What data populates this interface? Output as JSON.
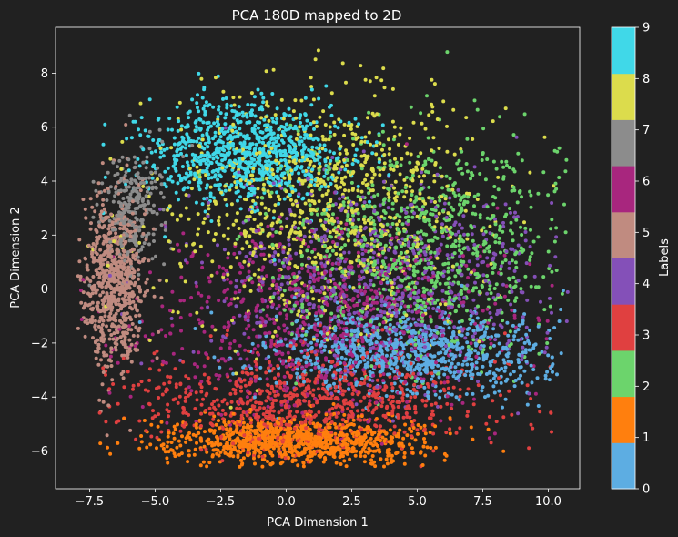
{
  "chart_data": {
    "type": "scatter",
    "title": "PCA 180D mapped to 2D",
    "xlabel": "PCA Dimension 1",
    "ylabel": "PCA Dimension 2",
    "xlim": [
      -8.8,
      11.2
    ],
    "ylim": [
      -7.4,
      9.7
    ],
    "xticks": [
      -7.5,
      -5.0,
      -2.5,
      0.0,
      2.5,
      5.0,
      7.5,
      10.0
    ],
    "xtick_labels": [
      "−7.5",
      "−5.0",
      "−2.5",
      "0.0",
      "2.5",
      "5.0",
      "7.5",
      "10.0"
    ],
    "yticks": [
      -6,
      -4,
      -2,
      0,
      2,
      4,
      6,
      8
    ],
    "ytick_labels": [
      "−6",
      "−4",
      "−2",
      "0",
      "2",
      "4",
      "6",
      "8"
    ],
    "grid": false,
    "colorbar": {
      "label": "Labels",
      "ticks": [
        0,
        1,
        2,
        3,
        4,
        5,
        6,
        7,
        8,
        9
      ],
      "tick_labels": [
        "0",
        "1",
        "2",
        "3",
        "4",
        "5",
        "6",
        "7",
        "8",
        "9"
      ],
      "colors": [
        "#5DADE2",
        "#FF7F0E",
        "#6CD46C",
        "#E04040",
        "#8450B8",
        "#C08B80",
        "#A8267E",
        "#8C8C8C",
        "#DCDC4C",
        "#40D8E8"
      ]
    },
    "clusters": [
      {
        "label": 0,
        "cx": 4.8,
        "cy": -2.4,
        "sx": 2.6,
        "sy": 0.8,
        "count": 900
      },
      {
        "label": 1,
        "cx": 0.3,
        "cy": -5.6,
        "sx": 2.4,
        "sy": 0.45,
        "count": 1000
      },
      {
        "label": 2,
        "cx": 5.3,
        "cy": 1.6,
        "sx": 2.8,
        "sy": 1.9,
        "count": 900
      },
      {
        "label": 3,
        "cx": 0.8,
        "cy": -4.2,
        "sx": 3.3,
        "sy": 0.9,
        "count": 800
      },
      {
        "label": 4,
        "cx": 3.6,
        "cy": 0.3,
        "sx": 3.3,
        "sy": 1.9,
        "count": 800
      },
      {
        "label": 5,
        "cx": -6.6,
        "cy": 0.3,
        "sx": 0.6,
        "sy": 1.6,
        "count": 700
      },
      {
        "label": 6,
        "cx": 1.4,
        "cy": -1.1,
        "sx": 3.6,
        "sy": 1.8,
        "count": 800
      },
      {
        "label": 7,
        "cx": -5.9,
        "cy": 3.0,
        "sx": 0.6,
        "sy": 1.1,
        "count": 250
      },
      {
        "label": 8,
        "cx": 1.2,
        "cy": 3.0,
        "sx": 2.9,
        "sy": 2.2,
        "count": 900
      },
      {
        "label": 9,
        "cx": -1.6,
        "cy": 5.1,
        "sx": 1.9,
        "sy": 0.9,
        "count": 900
      }
    ]
  }
}
